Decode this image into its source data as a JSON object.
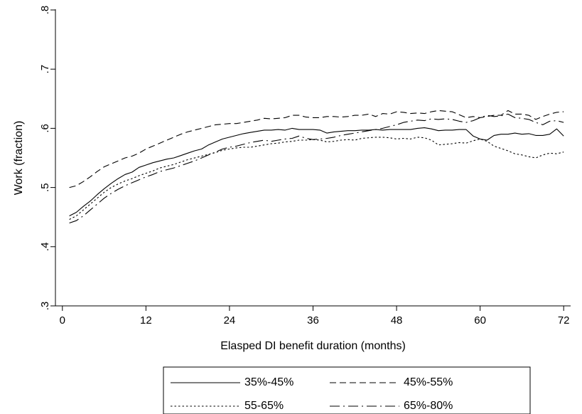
{
  "chart_data": {
    "type": "line",
    "title": "",
    "xlabel": "Elasped DI benefit duration (months)",
    "ylabel": "Work (fraction)",
    "xlim": [
      -1,
      73
    ],
    "ylim": [
      0.3,
      0.8
    ],
    "xticks": [
      0,
      12,
      24,
      36,
      48,
      60,
      72
    ],
    "xtick_labels": [
      "0",
      "12",
      "24",
      "36",
      "48",
      "60",
      "72"
    ],
    "yticks": [
      0.3,
      0.4,
      0.5,
      0.6,
      0.7,
      0.8
    ],
    "ytick_labels": [
      ".3",
      ".4",
      ".5",
      ".6",
      ".7",
      ".8"
    ],
    "grid": false,
    "legend_position": "bottom",
    "x": [
      1,
      2,
      3,
      4,
      5,
      6,
      7,
      8,
      9,
      10,
      11,
      12,
      13,
      14,
      15,
      16,
      17,
      18,
      19,
      20,
      21,
      22,
      23,
      24,
      25,
      26,
      27,
      28,
      29,
      30,
      31,
      32,
      33,
      34,
      35,
      36,
      37,
      38,
      39,
      40,
      41,
      42,
      43,
      44,
      45,
      46,
      47,
      48,
      49,
      50,
      51,
      52,
      53,
      54,
      55,
      56,
      57,
      58,
      59,
      60,
      61,
      62,
      63,
      64,
      65,
      66,
      67,
      68,
      69,
      70,
      71,
      72
    ],
    "series": [
      {
        "name": "35%-45%",
        "dash": "solid",
        "values": [
          0.452,
          0.458,
          0.468,
          0.477,
          0.488,
          0.498,
          0.507,
          0.515,
          0.522,
          0.526,
          0.534,
          0.538,
          0.542,
          0.545,
          0.548,
          0.55,
          0.554,
          0.558,
          0.562,
          0.565,
          0.572,
          0.577,
          0.582,
          0.585,
          0.588,
          0.591,
          0.593,
          0.595,
          0.597,
          0.597,
          0.598,
          0.597,
          0.6,
          0.598,
          0.598,
          0.598,
          0.597,
          0.592,
          0.594,
          0.595,
          0.596,
          0.596,
          0.597,
          0.597,
          0.598,
          0.597,
          0.598,
          0.598,
          0.598,
          0.598,
          0.6,
          0.601,
          0.599,
          0.596,
          0.597,
          0.597,
          0.598,
          0.598,
          0.587,
          0.582,
          0.58,
          0.588,
          0.59,
          0.59,
          0.592,
          0.59,
          0.591,
          0.588,
          0.588,
          0.59,
          0.599,
          0.587
        ]
      },
      {
        "name": "45%-55%",
        "dash": "dash",
        "values": [
          0.5,
          0.503,
          0.51,
          0.518,
          0.527,
          0.535,
          0.54,
          0.545,
          0.55,
          0.553,
          0.558,
          0.565,
          0.57,
          0.575,
          0.58,
          0.585,
          0.59,
          0.594,
          0.597,
          0.6,
          0.603,
          0.606,
          0.607,
          0.608,
          0.608,
          0.61,
          0.612,
          0.614,
          0.617,
          0.616,
          0.617,
          0.618,
          0.622,
          0.622,
          0.619,
          0.618,
          0.618,
          0.62,
          0.62,
          0.619,
          0.62,
          0.622,
          0.622,
          0.624,
          0.62,
          0.625,
          0.624,
          0.628,
          0.627,
          0.625,
          0.626,
          0.625,
          0.628,
          0.63,
          0.629,
          0.628,
          0.623,
          0.618,
          0.62,
          0.618,
          0.62,
          0.622,
          0.622,
          0.63,
          0.624,
          0.624,
          0.622,
          0.615,
          0.62,
          0.624,
          0.627,
          0.628
        ]
      },
      {
        "name": "55-65%",
        "dash": "dot",
        "values": [
          0.446,
          0.452,
          0.462,
          0.472,
          0.482,
          0.492,
          0.5,
          0.506,
          0.511,
          0.515,
          0.52,
          0.524,
          0.528,
          0.533,
          0.536,
          0.539,
          0.543,
          0.547,
          0.55,
          0.553,
          0.556,
          0.559,
          0.563,
          0.565,
          0.567,
          0.568,
          0.568,
          0.57,
          0.572,
          0.574,
          0.575,
          0.577,
          0.578,
          0.58,
          0.58,
          0.581,
          0.58,
          0.577,
          0.578,
          0.58,
          0.581,
          0.58,
          0.583,
          0.584,
          0.585,
          0.585,
          0.584,
          0.582,
          0.583,
          0.582,
          0.585,
          0.584,
          0.58,
          0.572,
          0.573,
          0.574,
          0.576,
          0.575,
          0.579,
          0.582,
          0.578,
          0.57,
          0.566,
          0.562,
          0.557,
          0.555,
          0.552,
          0.55,
          0.555,
          0.558,
          0.557,
          0.56
        ]
      },
      {
        "name": "65%-80%",
        "dash": "dashdot",
        "values": [
          0.44,
          0.444,
          0.452,
          0.462,
          0.472,
          0.482,
          0.49,
          0.497,
          0.503,
          0.508,
          0.513,
          0.518,
          0.522,
          0.527,
          0.53,
          0.533,
          0.537,
          0.541,
          0.545,
          0.55,
          0.555,
          0.56,
          0.565,
          0.568,
          0.57,
          0.573,
          0.576,
          0.578,
          0.58,
          0.578,
          0.58,
          0.582,
          0.583,
          0.587,
          0.583,
          0.581,
          0.582,
          0.583,
          0.585,
          0.588,
          0.59,
          0.592,
          0.594,
          0.596,
          0.598,
          0.6,
          0.603,
          0.606,
          0.61,
          0.612,
          0.614,
          0.613,
          0.616,
          0.615,
          0.616,
          0.615,
          0.612,
          0.61,
          0.613,
          0.618,
          0.622,
          0.62,
          0.621,
          0.624,
          0.618,
          0.617,
          0.615,
          0.61,
          0.606,
          0.612,
          0.613,
          0.61
        ]
      }
    ]
  }
}
